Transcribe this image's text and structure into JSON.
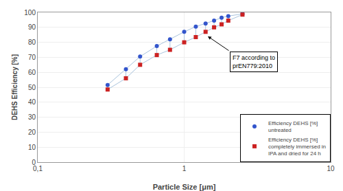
{
  "chart_data": {
    "type": "scatter",
    "xlabel": "Particle Size [μm]",
    "ylabel": "DEHS Efficiency [%]",
    "log": "x",
    "xlim": [
      0.1,
      10
    ],
    "ylim": [
      0,
      100
    ],
    "xticks": [
      {
        "value": 0.1,
        "label": "0,1"
      },
      1,
      10
    ],
    "yticks": [
      0,
      10,
      20,
      30,
      40,
      50,
      60,
      70,
      80,
      90,
      100
    ],
    "grid": true,
    "legend": "lower right",
    "color": "#aac4dd",
    "x": [
      0.3,
      0.4,
      0.5,
      0.65,
      0.8,
      1.0,
      1.2,
      1.4,
      1.6,
      1.8,
      2.0,
      2.5
    ],
    "series": [
      {
        "name": "Efficiency DEHS [%]\nuntreated",
        "color": "#3355cc",
        "marker": "circle",
        "values": [
          51.5,
          62.0,
          70.5,
          77.5,
          82.0,
          87.0,
          90.5,
          92.5,
          94.5,
          96.5,
          97.5,
          99.0
        ]
      },
      {
        "name": "Efficiency DEHS [%]\ncompletely immersed in\nIPA and dried for 24 h",
        "color": "#cc2222",
        "marker": "square",
        "values": [
          48.5,
          56.0,
          65.0,
          71.5,
          75.0,
          80.0,
          83.5,
          87.0,
          90.0,
          92.0,
          94.5,
          98.5
        ]
      }
    ],
    "annotations": [
      {
        "text": "F7 according to\nprEN779:2010",
        "x": 1.45,
        "y": 84.0,
        "text_x": 2.05,
        "text_y": 74.0
      }
    ]
  }
}
